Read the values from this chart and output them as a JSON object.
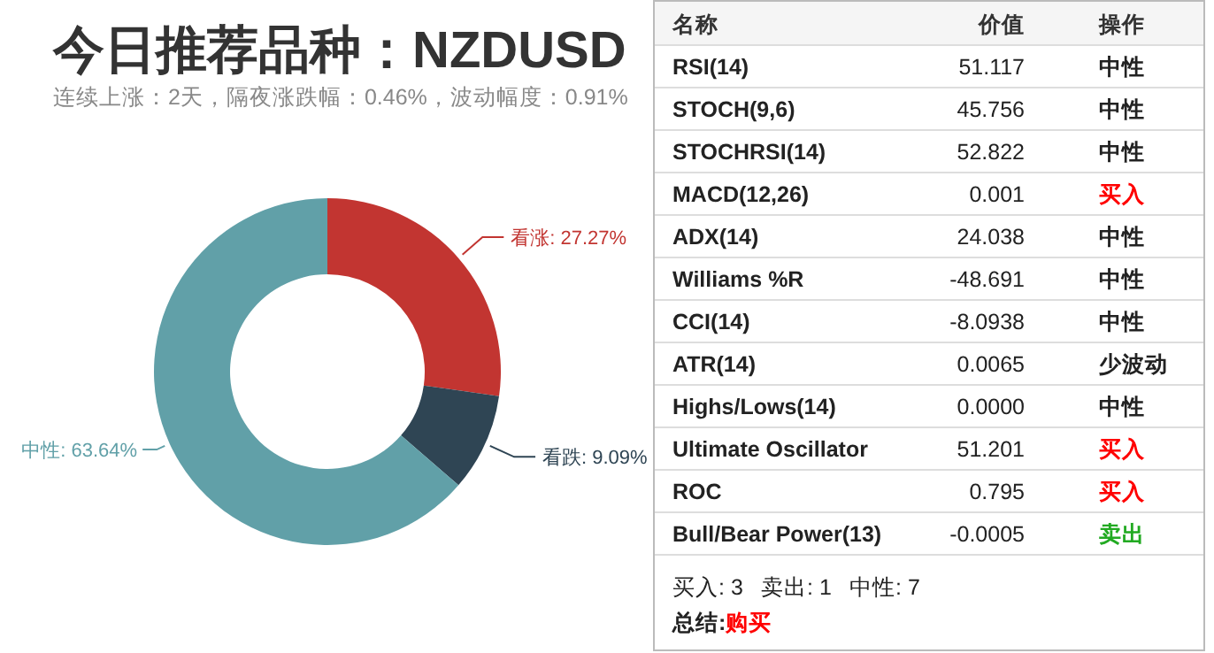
{
  "chart_data": [
    {
      "type": "donut",
      "title": "今日推荐品种：NZDUSD",
      "subtitle": "连续上涨：2天，隔夜涨跌幅：0.46%，波动幅度：0.91%",
      "categories": [
        "看涨",
        "看跌",
        "中性"
      ],
      "values": [
        27.27,
        9.09,
        63.64
      ],
      "colors": [
        "#c23531",
        "#2f4554",
        "#61a0a8"
      ],
      "value_labels": [
        ": 27.27%",
        ": 9.09%",
        ": 63.64%"
      ]
    },
    {
      "type": "other",
      "annotations": [
        "名称",
        "价值",
        "操作",
        "RSI(14)",
        "51.117",
        "中性",
        "STOCH(9,6)",
        "45.756",
        "中性",
        "STOCHRSI(14)",
        "52.822",
        "中性",
        "MACD(12,26)",
        "0.001",
        "买入",
        "ADX(14)",
        "24.038",
        "中性",
        "Williams %R",
        "-48.691",
        "中性",
        "CCI(14)",
        "-8.0938",
        "中性",
        "ATR(14)",
        "0.0065",
        "少波动",
        "Highs/Lows(14)",
        "0.0000",
        "中性",
        "Ultimate Oscillator",
        "51.201",
        "买入",
        "ROC",
        "0.795",
        "买入",
        "Bull/Bear Power(13)",
        "-0.0005",
        "卖出",
        "买入: 3",
        "卖出: 1",
        "中性: 7",
        "总结:",
        "购买"
      ],
      "colors": [
        "#333333",
        "#333333",
        "#333333",
        "#222222",
        "#222222",
        "#222222",
        "#222222",
        "#222222",
        "#222222",
        "#222222",
        "#222222",
        "#222222",
        "#222222",
        "#222222",
        "#ff0000",
        "#222222",
        "#222222",
        "#222222",
        "#222222",
        "#222222",
        "#222222",
        "#222222",
        "#222222",
        "#222222",
        "#222222",
        "#222222",
        "#222222",
        "#222222",
        "#222222",
        "#222222",
        "#222222",
        "#222222",
        "#ff0000",
        "#222222",
        "#222222",
        "#ff0000",
        "#222222",
        "#222222",
        "#22aa22",
        "#222222",
        "#222222",
        "#222222",
        "#222222",
        "#ff0000"
      ]
    }
  ]
}
